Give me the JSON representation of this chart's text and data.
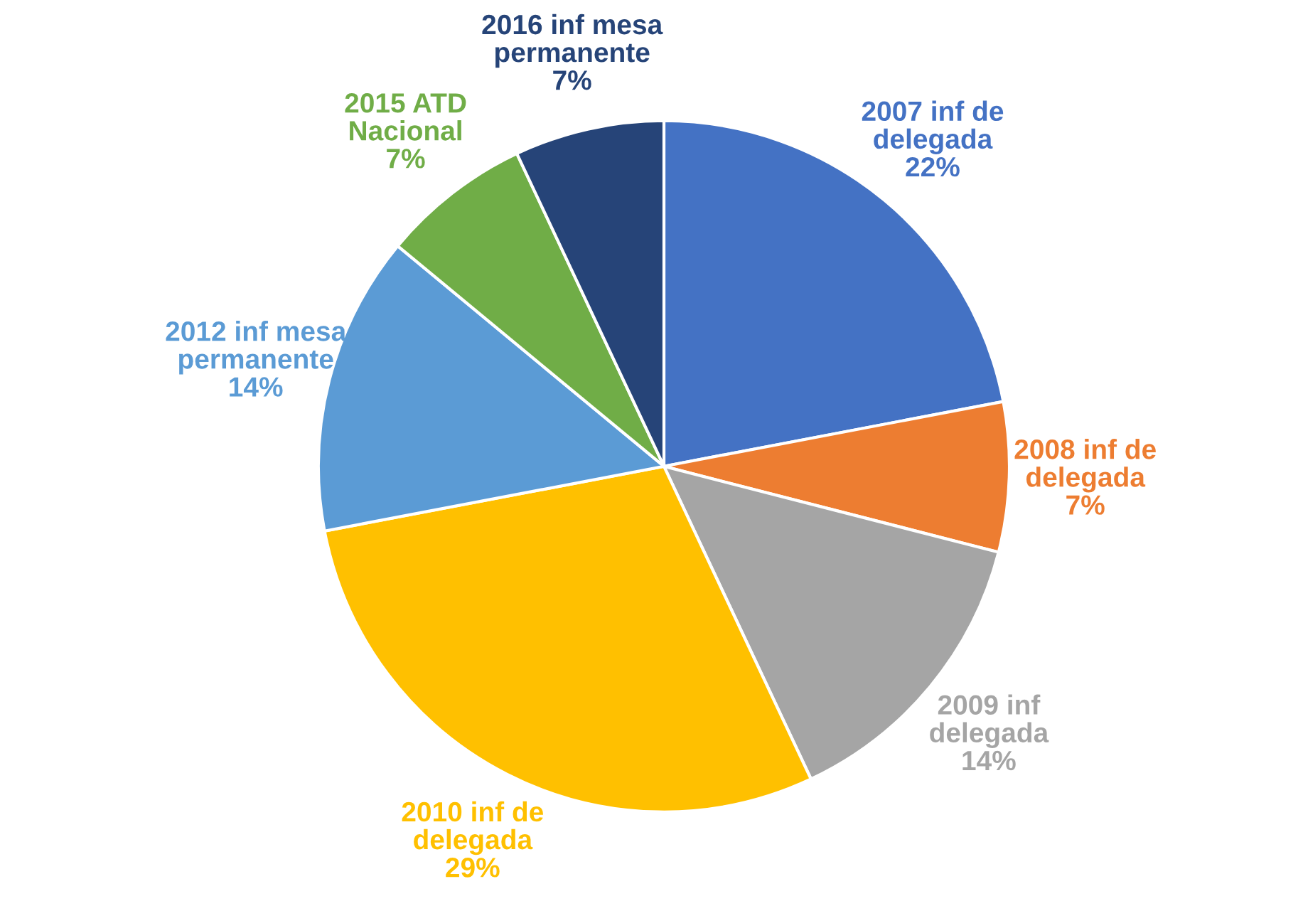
{
  "chart_data": {
    "type": "pie",
    "categories": [
      "2007 inf de\ndelegada",
      "2008 inf de\ndelegada",
      "2009 inf\ndelegada",
      "2010 inf de\ndelegada",
      "2012 inf mesa\npermanente",
      "2015 ATD\nNacional",
      "2016 inf mesa\npermanente"
    ],
    "values": [
      22,
      7,
      14,
      29,
      14,
      7,
      7
    ],
    "colors": [
      "#4472c4",
      "#ed7d31",
      "#a5a5a5",
      "#ffc000",
      "#5b9bd5",
      "#70ad47",
      "#264478"
    ],
    "value_labels": [
      "22%",
      "7%",
      "14%",
      "29%",
      "14%",
      "7%",
      "7%"
    ],
    "legend": false
  }
}
